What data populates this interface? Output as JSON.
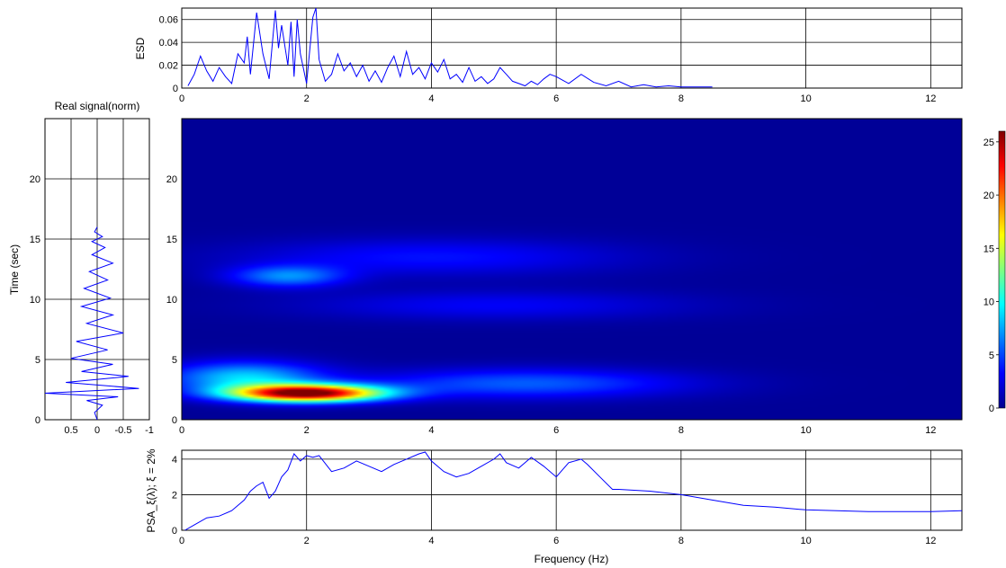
{
  "figure": {
    "esd_panel": {
      "ylabel": "ESD",
      "xlim": [
        0,
        12.5
      ],
      "ylim": [
        0,
        0.07
      ],
      "yticks": [
        "0",
        "0.02",
        "0.04",
        "0.06"
      ],
      "xticks": [
        "0",
        "2",
        "4",
        "6",
        "8",
        "10",
        "12"
      ],
      "line_color": "#0000ff"
    },
    "signal_panel": {
      "title": "Real signal(norm)",
      "ylabel": "Time (sec)",
      "xlim": [
        1,
        -1
      ],
      "ylim": [
        0,
        25
      ],
      "xticks": [
        "0.5",
        "0",
        "-0.5",
        "-1"
      ],
      "yticks": [
        "0",
        "5",
        "10",
        "15",
        "20"
      ],
      "line_color": "#0000ff"
    },
    "spectrogram_panel": {
      "xticks": [
        "0",
        "2",
        "4",
        "6",
        "8",
        "10",
        "12"
      ],
      "yticks": [
        "0",
        "5",
        "10",
        "15",
        "20"
      ],
      "xlim": [
        0,
        12.5
      ],
      "ylim": [
        0,
        25
      ],
      "colormap": "jet"
    },
    "colorbar": {
      "range": [
        0,
        26
      ],
      "ticks": [
        "0",
        "5",
        "10",
        "15",
        "20",
        "25"
      ]
    },
    "psa_panel": {
      "ylabel": "PSA_ξ(λ); ξ = 2%",
      "xlabel": "Frequency (Hz)",
      "xlim": [
        0,
        12.5
      ],
      "ylim": [
        0,
        4.5
      ],
      "yticks": [
        "0",
        "2",
        "4"
      ],
      "xticks": [
        "0",
        "2",
        "4",
        "6",
        "8",
        "10",
        "12"
      ],
      "line_color": "#0000ff"
    }
  },
  "chart_data": [
    {
      "type": "line",
      "name": "esd",
      "ylabel": "ESD",
      "xlim": [
        0,
        12.5
      ],
      "ylim": [
        0,
        0.07
      ],
      "x": [
        0.1,
        0.2,
        0.3,
        0.4,
        0.5,
        0.6,
        0.7,
        0.8,
        0.9,
        1.0,
        1.05,
        1.1,
        1.2,
        1.3,
        1.4,
        1.5,
        1.55,
        1.6,
        1.7,
        1.75,
        1.8,
        1.85,
        1.9,
        2.0,
        2.1,
        2.15,
        2.2,
        2.3,
        2.4,
        2.5,
        2.6,
        2.7,
        2.8,
        2.9,
        3.0,
        3.1,
        3.2,
        3.3,
        3.4,
        3.5,
        3.6,
        3.7,
        3.8,
        3.9,
        4.0,
        4.1,
        4.2,
        4.3,
        4.4,
        4.5,
        4.6,
        4.7,
        4.8,
        4.9,
        5.0,
        5.1,
        5.2,
        5.3,
        5.4,
        5.5,
        5.6,
        5.7,
        5.8,
        5.9,
        6.0,
        6.2,
        6.4,
        6.6,
        6.8,
        7.0,
        7.2,
        7.4,
        7.6,
        7.8,
        8.0,
        8.2,
        8.5
      ],
      "y": [
        0.002,
        0.012,
        0.028,
        0.015,
        0.006,
        0.018,
        0.01,
        0.004,
        0.03,
        0.022,
        0.045,
        0.012,
        0.066,
        0.03,
        0.008,
        0.068,
        0.035,
        0.055,
        0.02,
        0.058,
        0.01,
        0.06,
        0.03,
        0.004,
        0.062,
        0.07,
        0.025,
        0.006,
        0.012,
        0.03,
        0.015,
        0.022,
        0.01,
        0.02,
        0.006,
        0.015,
        0.005,
        0.018,
        0.028,
        0.01,
        0.032,
        0.012,
        0.018,
        0.008,
        0.022,
        0.014,
        0.025,
        0.008,
        0.012,
        0.005,
        0.018,
        0.006,
        0.01,
        0.004,
        0.008,
        0.018,
        0.012,
        0.006,
        0.004,
        0.002,
        0.006,
        0.003,
        0.008,
        0.012,
        0.01,
        0.004,
        0.012,
        0.005,
        0.002,
        0.006,
        0.001,
        0.003,
        0.001,
        0.002,
        0.001,
        0.001,
        0.001
      ]
    },
    {
      "type": "line",
      "name": "real-signal-norm",
      "title": "Real signal(norm)",
      "ylabel": "Time (sec)",
      "xlim": [
        1,
        -1
      ],
      "ylim": [
        0,
        25
      ],
      "x": [
        0,
        0.05,
        -0.1,
        0.2,
        -0.4,
        1.0,
        -0.8,
        0.6,
        -0.6,
        0.3,
        -0.3,
        0.5,
        -0.2,
        0.4,
        -0.5,
        0.2,
        -0.3,
        0.3,
        -0.25,
        0.25,
        -0.2,
        0.15,
        -0.3,
        0.1,
        -0.15,
        0.1,
        -0.1,
        0.05,
        0
      ],
      "y": [
        0,
        0.6,
        1.2,
        1.6,
        1.9,
        2.2,
        2.6,
        3.1,
        3.6,
        4.0,
        4.6,
        5.1,
        5.8,
        6.5,
        7.2,
        8.0,
        8.7,
        9.4,
        10.1,
        10.9,
        11.6,
        12.3,
        13.0,
        13.7,
        14.3,
        14.8,
        15.2,
        15.6,
        16.0
      ]
    },
    {
      "type": "heatmap",
      "name": "spectrogram",
      "xlim": [
        0,
        12.5
      ],
      "ylim": [
        0,
        25
      ],
      "colorbar_range": [
        0,
        26
      ],
      "blobs": [
        {
          "freq": 2.0,
          "time": 2.2,
          "peak": 26,
          "freq_width": 1.2,
          "time_width": 0.7
        },
        {
          "freq": 1.0,
          "time": 3.5,
          "peak": 8,
          "freq_width": 1.2,
          "time_width": 1.3
        },
        {
          "freq": 5.5,
          "time": 3.0,
          "peak": 5,
          "freq_width": 2.5,
          "time_width": 1.2
        },
        {
          "freq": 1.7,
          "time": 11.9,
          "peak": 6,
          "freq_width": 0.9,
          "time_width": 0.9
        },
        {
          "freq": 4.0,
          "time": 13.5,
          "peak": 3,
          "freq_width": 3.0,
          "time_width": 1.5
        },
        {
          "freq": 5.0,
          "time": 9.5,
          "peak": 2.5,
          "freq_width": 3.0,
          "time_width": 1.2
        }
      ]
    },
    {
      "type": "line",
      "name": "psa",
      "ylabel": "PSA_ξ(λ); ξ = 2%",
      "xlabel": "Frequency (Hz)",
      "xlim": [
        0,
        12.5
      ],
      "ylim": [
        0,
        4.5
      ],
      "x": [
        0.05,
        0.2,
        0.4,
        0.6,
        0.8,
        1.0,
        1.1,
        1.2,
        1.3,
        1.4,
        1.5,
        1.6,
        1.7,
        1.8,
        1.9,
        2.0,
        2.1,
        2.2,
        2.4,
        2.6,
        2.8,
        3.0,
        3.2,
        3.4,
        3.6,
        3.8,
        3.9,
        4.0,
        4.2,
        4.4,
        4.6,
        4.8,
        5.0,
        5.1,
        5.2,
        5.4,
        5.6,
        5.8,
        6.0,
        6.2,
        6.4,
        6.5,
        6.7,
        6.9,
        7.0,
        7.5,
        8.0,
        8.5,
        9.0,
        9.5,
        10.0,
        10.5,
        11.0,
        11.5,
        12.0,
        12.5
      ],
      "y": [
        0.0,
        0.3,
        0.7,
        0.8,
        1.1,
        1.7,
        2.2,
        2.5,
        2.7,
        1.8,
        2.2,
        3.0,
        3.4,
        4.3,
        3.9,
        4.2,
        4.1,
        4.2,
        3.3,
        3.5,
        3.9,
        3.6,
        3.3,
        3.7,
        4.0,
        4.3,
        4.4,
        3.9,
        3.3,
        3.0,
        3.2,
        3.6,
        4.0,
        4.3,
        3.8,
        3.5,
        4.1,
        3.6,
        3.0,
        3.8,
        4.0,
        3.7,
        3.0,
        2.3,
        2.3,
        2.2,
        2.0,
        1.7,
        1.4,
        1.3,
        1.15,
        1.1,
        1.05,
        1.05,
        1.05,
        1.1
      ]
    }
  ]
}
